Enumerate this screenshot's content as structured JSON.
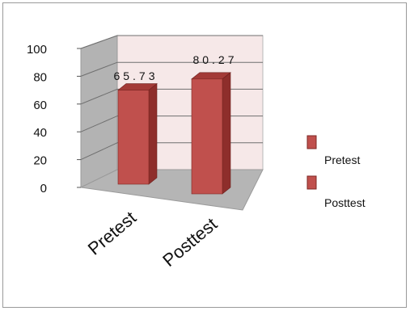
{
  "chart_data": {
    "type": "bar",
    "categories": [
      "Pretest",
      "Posttest"
    ],
    "series": [
      {
        "values": [
          65.73,
          80.27
        ]
      }
    ],
    "data_labels": [
      "65.73",
      "80.27"
    ],
    "yticks": [
      "0",
      "20",
      "40",
      "60",
      "80",
      "100"
    ],
    "ylim": [
      0,
      100
    ],
    "grid": true,
    "legend_position": "right",
    "legend": [
      "Pretest",
      "Posttest"
    ],
    "colors": {
      "bar_front": "#c0504d",
      "bar_side": "#8e2e2b",
      "bar_top": "#a33a37",
      "back_wall": "#f6e8e8",
      "side_wall": "#b3b3b3",
      "floor": "#b5b5b5"
    }
  }
}
